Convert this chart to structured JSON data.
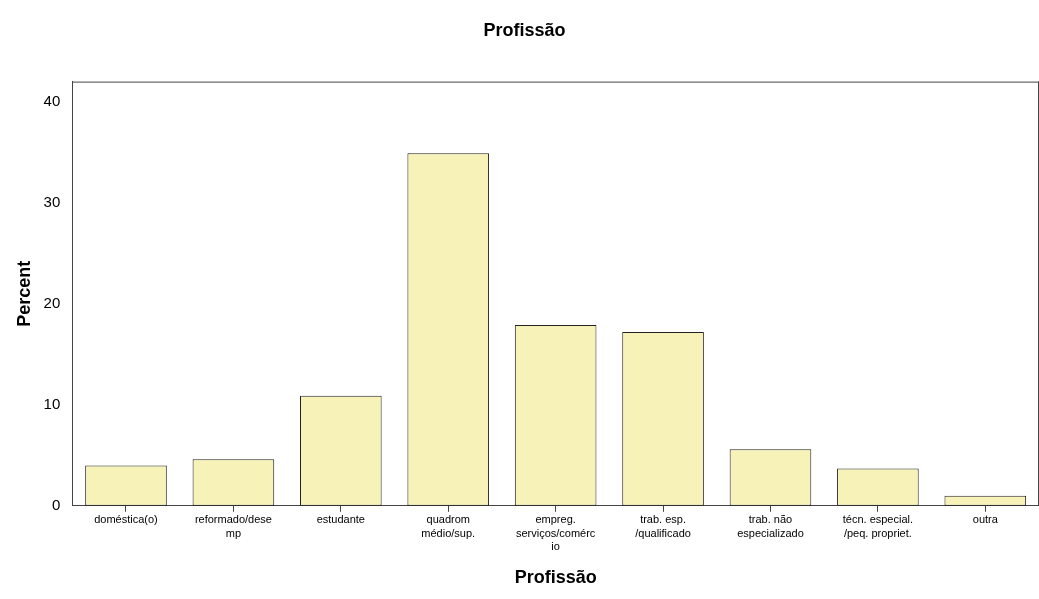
{
  "chart_data": {
    "type": "bar",
    "title": "Profissão",
    "xlabel": "Profissão",
    "ylabel": "Percent",
    "categories": [
      "doméstica(o)",
      "reformado/desemp",
      "estudante",
      "quadrom médio/sup.",
      "empreg. serviços/comércio",
      "trab. esp. /qualificado",
      "trab. não especializado",
      "técn. especial. /peq. propriet.",
      "outra"
    ],
    "values": [
      4.0,
      4.6,
      10.9,
      34.9,
      17.9,
      17.2,
      5.6,
      3.7,
      1.0
    ],
    "color": "#f7f3b8",
    "ylim": [
      0,
      42
    ],
    "yticks": [
      0,
      10,
      20,
      30,
      40
    ],
    "grid": false,
    "legend": false
  }
}
